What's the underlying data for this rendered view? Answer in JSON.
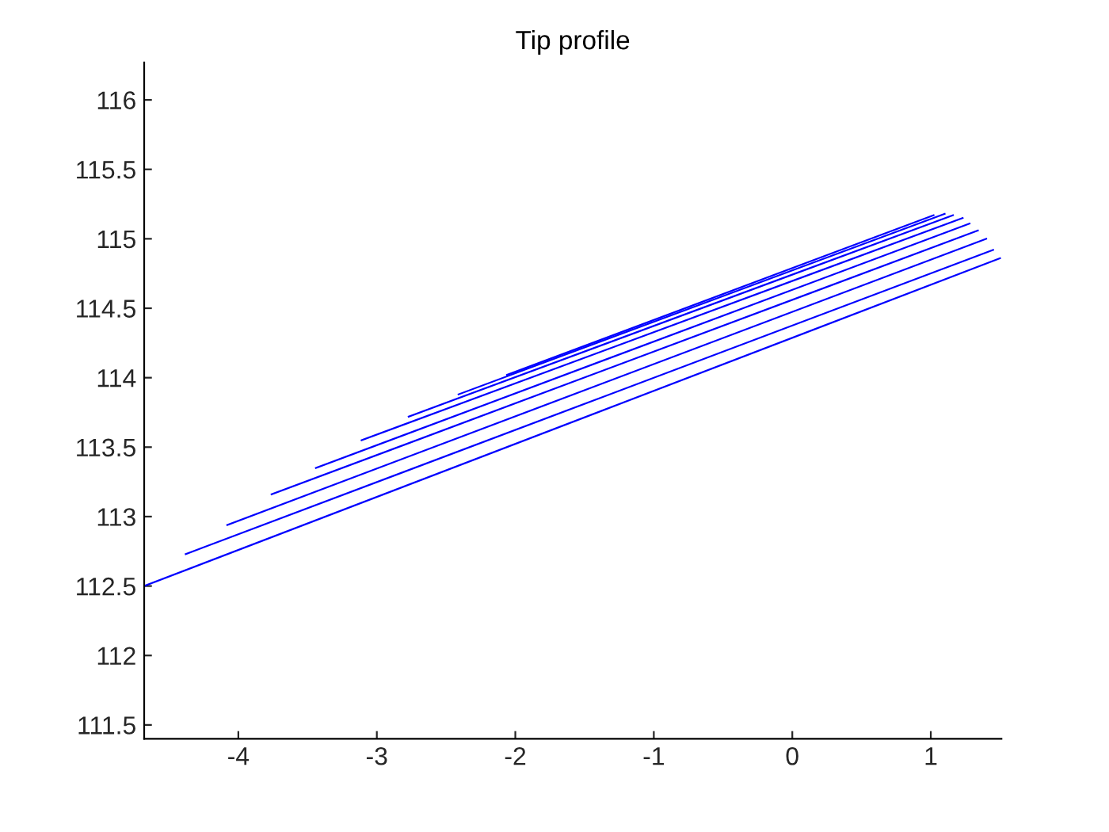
{
  "chart_data": {
    "type": "line",
    "title": "Tip profile",
    "xlim": [
      -4.68,
      1.51
    ],
    "ylim": [
      111.4,
      116.27
    ],
    "xticks": [
      -4,
      -3,
      -2,
      -1,
      0,
      1
    ],
    "yticks": [
      111.5,
      112,
      112.5,
      113,
      113.5,
      114,
      114.5,
      115,
      115.5,
      116
    ],
    "grid": false,
    "legend": false,
    "marker": "none",
    "line_style": "solid",
    "series": [
      {
        "color": "#0000ff",
        "x": [
          -4.68,
          1.5
        ],
        "values": [
          112.5,
          114.86
        ]
      },
      {
        "color": "#0000ff",
        "x": [
          -4.38,
          1.45
        ],
        "values": [
          112.73,
          114.92
        ]
      },
      {
        "color": "#0000ff",
        "x": [
          -4.08,
          1.4
        ],
        "values": [
          112.94,
          115.0
        ]
      },
      {
        "color": "#0000ff",
        "x": [
          -3.76,
          1.34
        ],
        "values": [
          113.16,
          115.06
        ]
      },
      {
        "color": "#0000ff",
        "x": [
          -3.44,
          1.28
        ],
        "values": [
          113.35,
          115.11
        ]
      },
      {
        "color": "#0000ff",
        "x": [
          -3.11,
          1.23
        ],
        "values": [
          113.55,
          115.15
        ]
      },
      {
        "color": "#0000ff",
        "x": [
          -2.77,
          1.16
        ],
        "values": [
          113.72,
          115.17
        ]
      },
      {
        "color": "#0000ff",
        "x": [
          -2.41,
          1.1
        ],
        "values": [
          113.88,
          115.18
        ]
      },
      {
        "color": "#0000ff",
        "x": [
          -2.06,
          1.02
        ],
        "values": [
          114.02,
          115.17
        ]
      }
    ]
  }
}
